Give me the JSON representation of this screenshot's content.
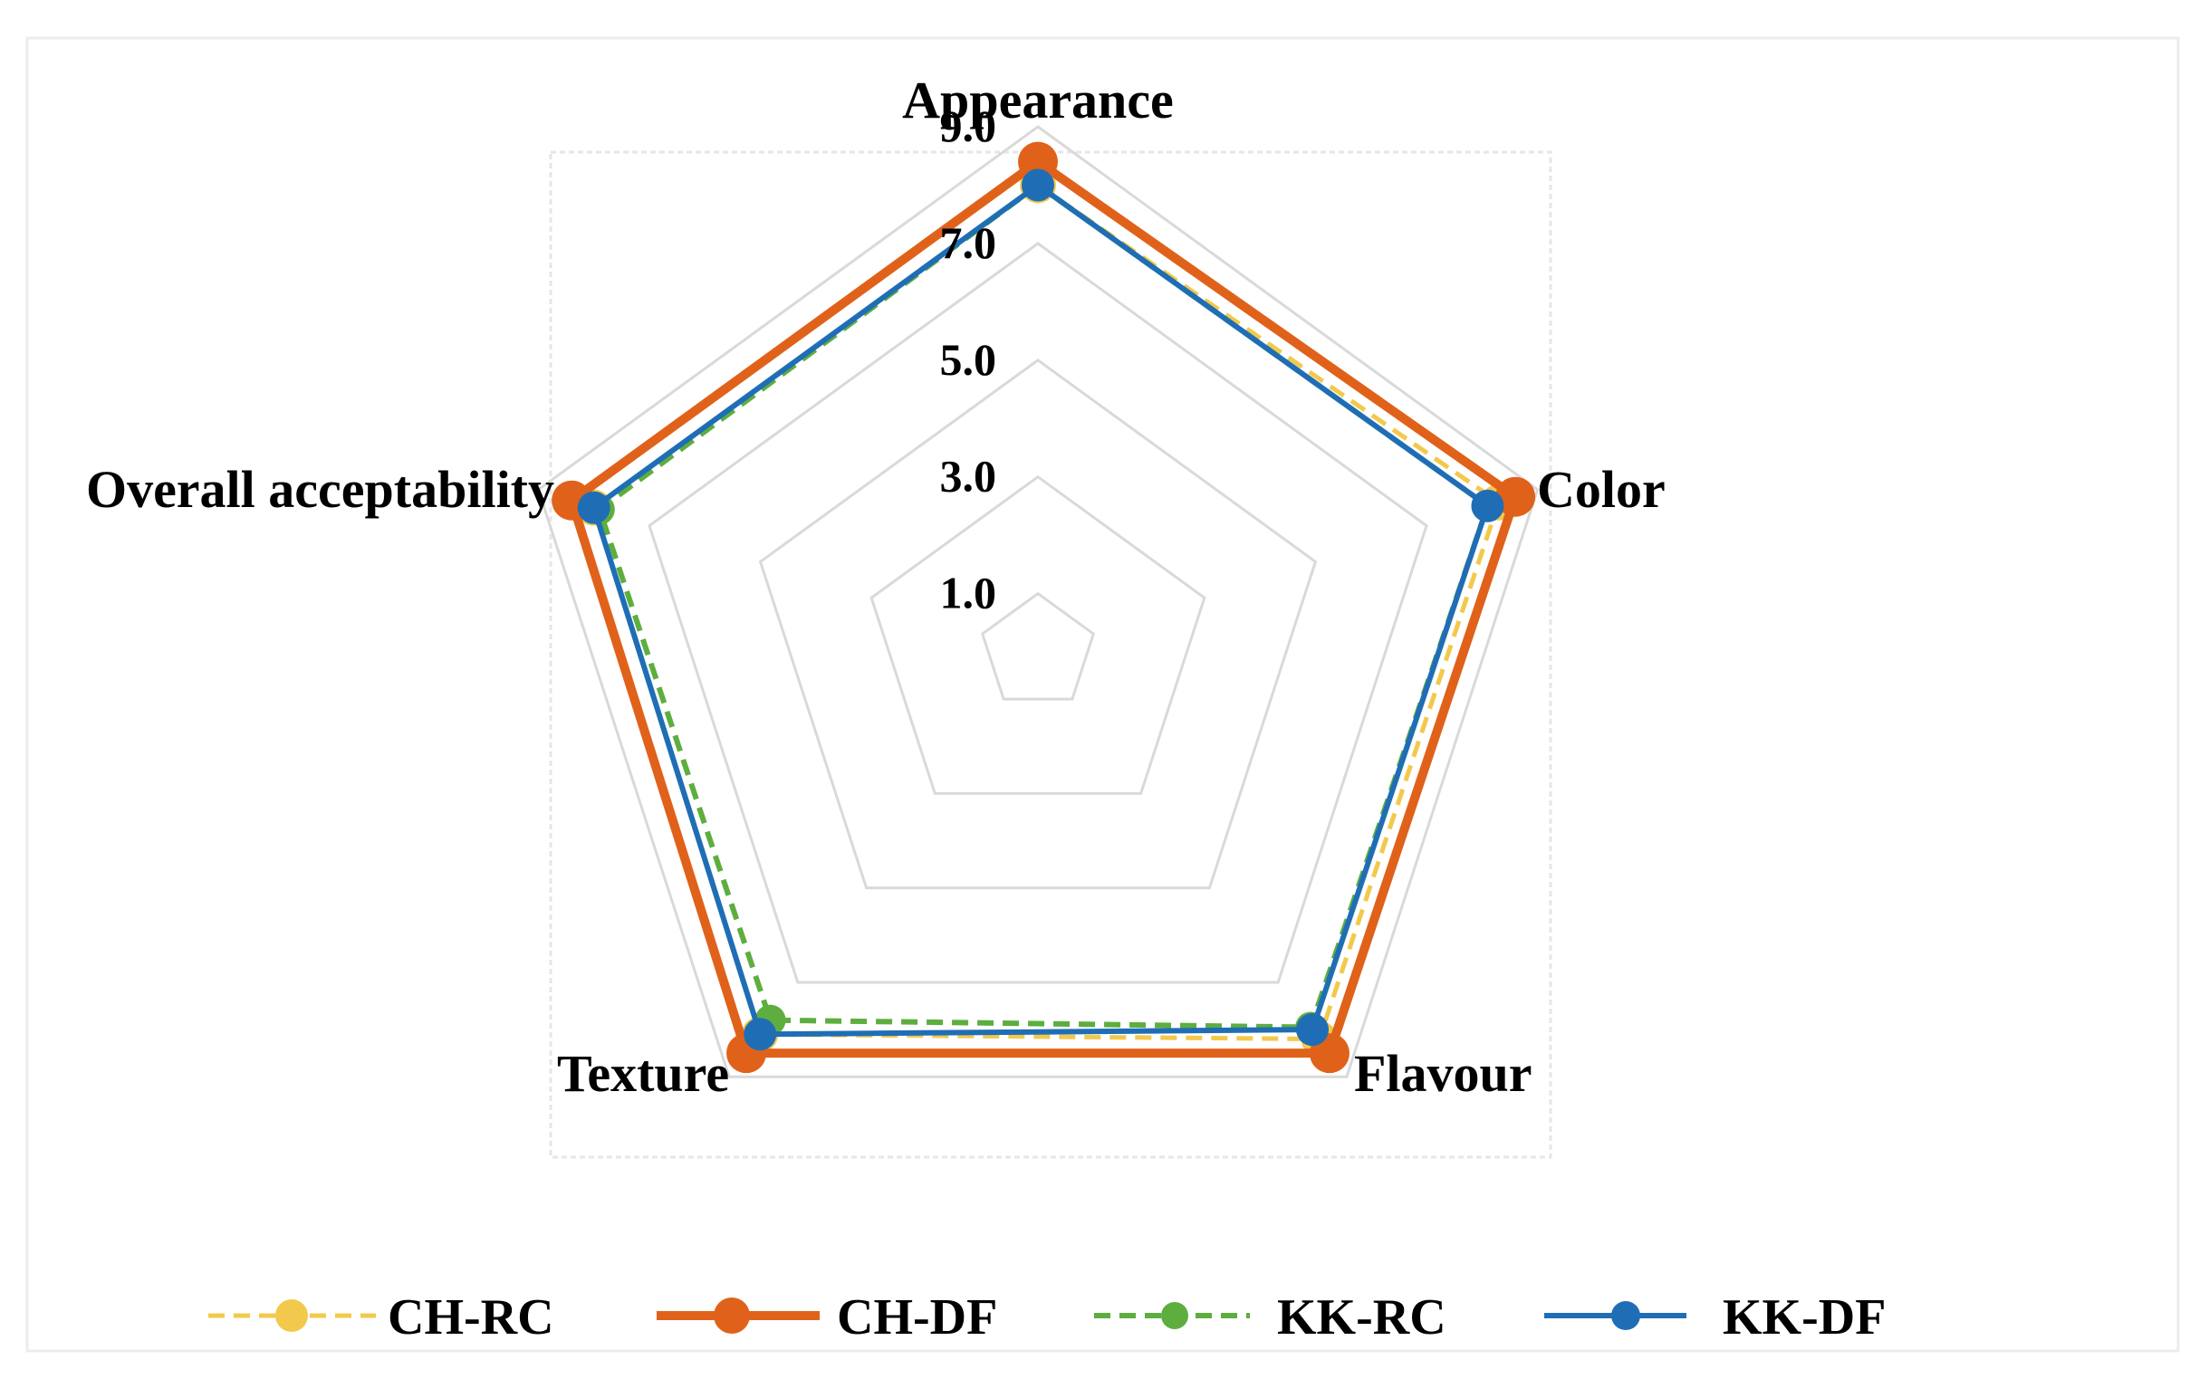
{
  "chart_data": {
    "type": "radar",
    "categories": [
      "Appearance",
      "Color",
      "Flavour",
      "Texture",
      "Overall acceptability"
    ],
    "ticks": [
      "1.0",
      "3.0",
      "5.0",
      "7.0",
      "9.0"
    ],
    "range": [
      0,
      9
    ],
    "grid": true,
    "legend_position": "bottom",
    "series": [
      {
        "name": "CH-RC",
        "values": [
          8.0,
          8.3,
          8.2,
          8.1,
          8.0
        ],
        "color": "#F2C94C",
        "style": "dashed"
      },
      {
        "name": "CH-DF",
        "values": [
          8.4,
          8.6,
          8.5,
          8.5,
          8.4
        ],
        "color": "#E0621A",
        "style": "solid"
      },
      {
        "name": "KK-RC",
        "values": [
          8.0,
          8.1,
          7.95,
          7.8,
          7.9
        ],
        "color": "#5DAE3F",
        "style": "dashed"
      },
      {
        "name": "KK-DF",
        "values": [
          8.0,
          8.1,
          8.0,
          8.1,
          8.0
        ],
        "color": "#1F6EB5",
        "style": "solid"
      }
    ]
  }
}
